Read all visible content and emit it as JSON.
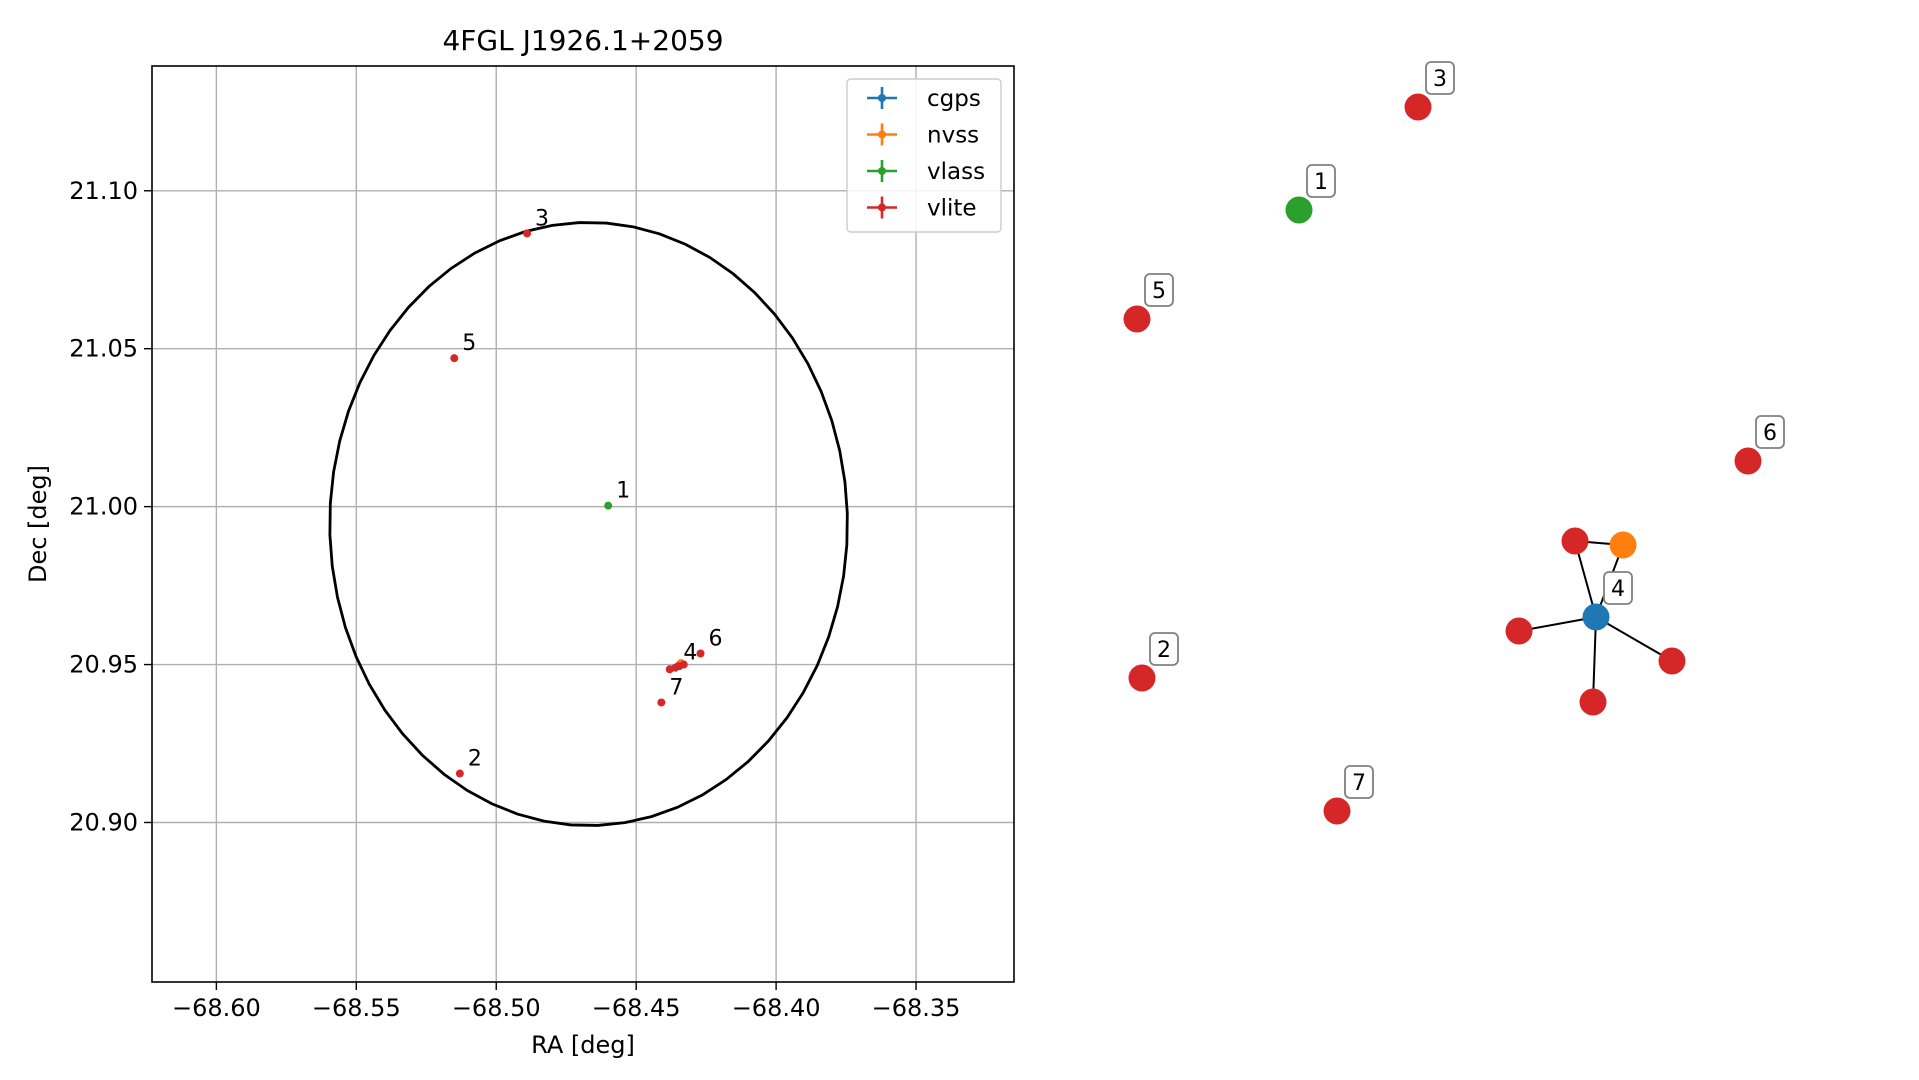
{
  "chart_data": [
    {
      "type": "scatter",
      "title": "4FGL J1926.1+2059",
      "xlabel": "RA [deg]",
      "ylabel": "Dec [deg]",
      "xlim": [
        -68.623,
        -68.315
      ],
      "ylim": [
        20.8495,
        21.1395
      ],
      "xticks": [
        -68.6,
        -68.55,
        -68.5,
        -68.45,
        -68.4,
        -68.35
      ],
      "xtick_labels": [
        "−68.60",
        "−68.55",
        "−68.50",
        "−68.45",
        "−68.40",
        "−68.35"
      ],
      "yticks": [
        20.9,
        20.95,
        21.0,
        21.05,
        21.1
      ],
      "ytick_labels": [
        "20.90",
        "20.95",
        "21.00",
        "21.05",
        "21.10"
      ],
      "grid": true,
      "legend_position": "top-right",
      "series": [
        {
          "name": "cgps",
          "color": "#1f77b4",
          "points": [
            {
              "x": -68.4345,
              "y": 20.9495
            }
          ]
        },
        {
          "name": "nvss",
          "color": "#ff7f0e",
          "points": [
            {
              "x": -68.434,
              "y": 20.9505
            }
          ]
        },
        {
          "name": "vlass",
          "color": "#2ca02c",
          "points": [
            {
              "x": -68.46,
              "y": 21.0003,
              "label": "1"
            }
          ]
        },
        {
          "name": "vlite",
          "color": "#d62728",
          "points": [
            {
              "x": -68.513,
              "y": 20.9155,
              "label": "2"
            },
            {
              "x": -68.489,
              "y": 21.0865,
              "label": "3"
            },
            {
              "x": -68.436,
              "y": 20.949,
              "label": "4"
            },
            {
              "x": -68.515,
              "y": 21.047,
              "label": "5"
            },
            {
              "x": -68.427,
              "y": 20.9535,
              "label": "6"
            },
            {
              "x": -68.441,
              "y": 20.938,
              "label": "7"
            },
            {
              "x": -68.438,
              "y": 20.9485
            },
            {
              "x": -68.435,
              "y": 20.9495
            },
            {
              "x": -68.433,
              "y": 20.95
            }
          ]
        }
      ],
      "ellipse": {
        "ra_center": -68.467,
        "dec_center": 20.9945,
        "ra_halfwidth": 0.0925,
        "dec_halfwidth": 0.0955,
        "color": "#000000"
      }
    },
    {
      "type": "diagram",
      "nodes": [
        {
          "id": "1",
          "color": "#2ca02c",
          "label": "1"
        },
        {
          "id": "3",
          "color": "#d62728",
          "label": "3"
        },
        {
          "id": "5",
          "color": "#d62728",
          "label": "5"
        },
        {
          "id": "6",
          "color": "#d62728",
          "label": "6"
        },
        {
          "id": "2",
          "color": "#d62728",
          "label": "2"
        },
        {
          "id": "7",
          "color": "#d62728",
          "label": "7"
        },
        {
          "id": "4",
          "color": "#1f77b4",
          "label": "4"
        },
        {
          "id": "a",
          "color": "#d62728"
        },
        {
          "id": "b",
          "color": "#ff7f0e"
        },
        {
          "id": "c",
          "color": "#d62728"
        },
        {
          "id": "d",
          "color": "#d62728"
        },
        {
          "id": "e",
          "color": "#d62728"
        }
      ],
      "edges": [
        [
          "4",
          "a"
        ],
        [
          "4",
          "b"
        ],
        [
          "a",
          "b"
        ],
        [
          "4",
          "c"
        ],
        [
          "4",
          "d"
        ],
        [
          "4",
          "e"
        ]
      ]
    }
  ]
}
